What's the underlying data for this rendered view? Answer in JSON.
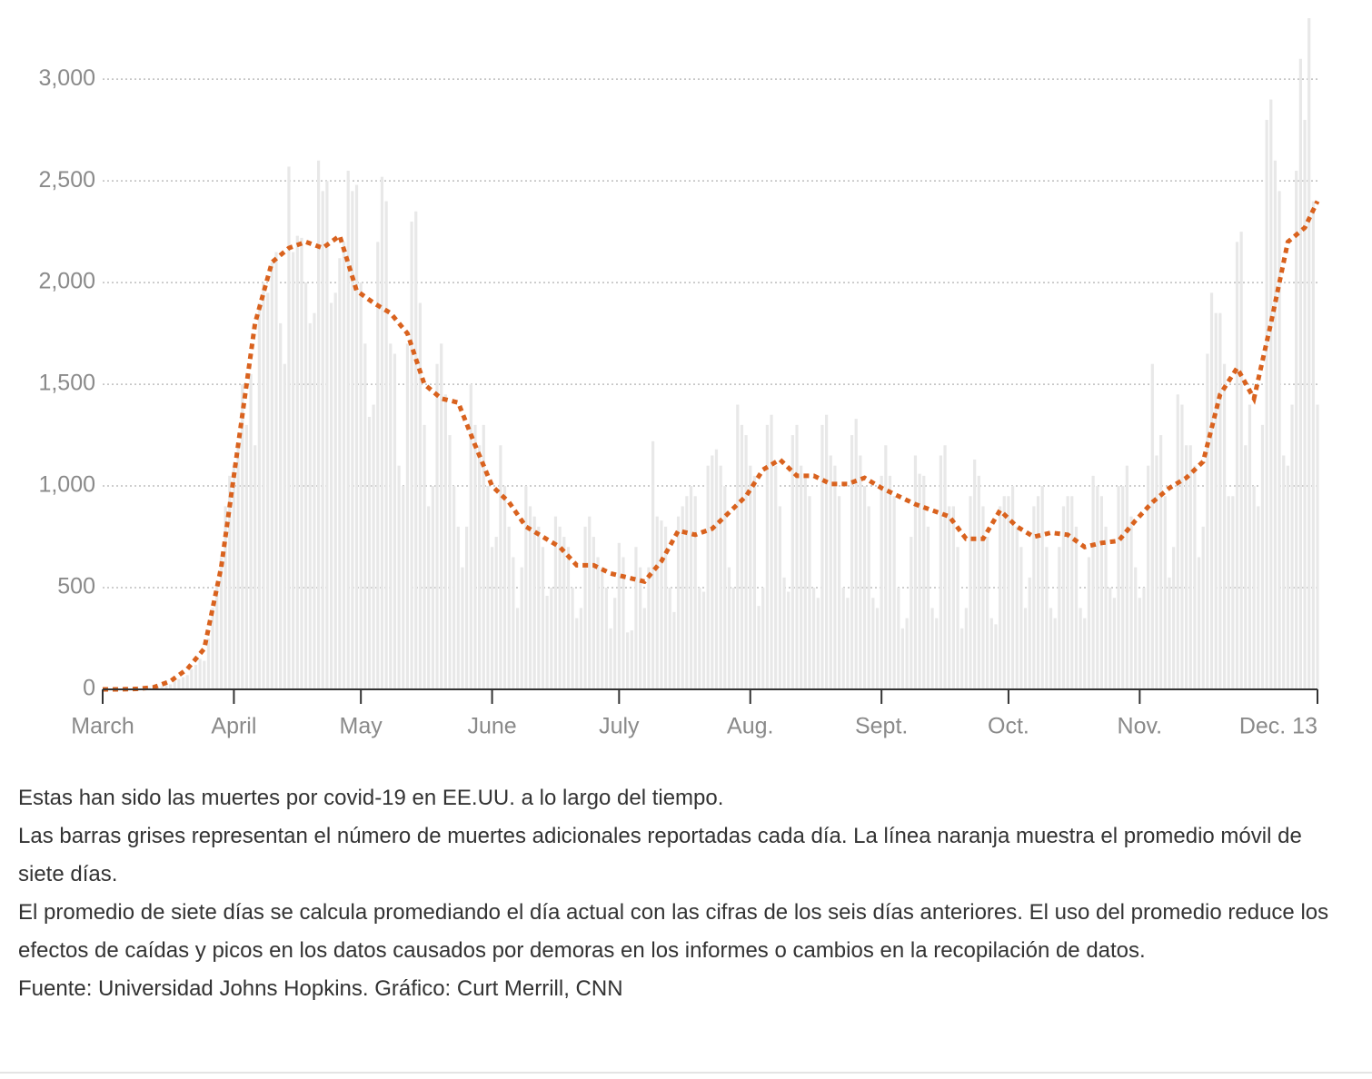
{
  "chart_data": {
    "type": "bar",
    "xlim": [
      0,
      287
    ],
    "ylim": [
      0,
      3300
    ],
    "xticks": [
      {
        "value": 0,
        "label": "March"
      },
      {
        "value": 31,
        "label": "April"
      },
      {
        "value": 61,
        "label": "May"
      },
      {
        "value": 92,
        "label": "June"
      },
      {
        "value": 122,
        "label": "July"
      },
      {
        "value": 153,
        "label": "Aug."
      },
      {
        "value": 184,
        "label": "Sept."
      },
      {
        "value": 214,
        "label": "Oct."
      },
      {
        "value": 245,
        "label": "Nov."
      },
      {
        "value": 287,
        "label": "Dec. 13"
      }
    ],
    "yticks": [
      0,
      500,
      {
        "value": 1000,
        "label": "1,000"
      },
      {
        "value": 1500,
        "label": "1,500"
      },
      {
        "value": 2000,
        "label": "2,000"
      },
      {
        "value": 2500,
        "label": "2,500"
      },
      {
        "value": 3000,
        "label": "3,000"
      }
    ],
    "grid": true,
    "series": [
      {
        "type": "bar",
        "color": "#e8e8e8",
        "x": [
          0,
          1,
          2,
          3,
          4,
          5,
          6,
          7,
          8,
          9,
          10,
          11,
          12,
          13,
          14,
          15,
          16,
          17,
          18,
          19,
          20,
          21,
          22,
          23,
          24,
          25,
          26,
          27,
          28,
          29,
          30,
          31,
          32,
          33,
          34,
          35,
          36,
          37,
          38,
          39,
          40,
          41,
          42,
          43,
          44,
          45,
          46,
          47,
          48,
          49,
          50,
          51,
          52,
          53,
          54,
          55,
          56,
          57,
          58,
          59,
          60,
          61,
          62,
          63,
          64,
          65,
          66,
          67,
          68,
          69,
          70,
          71,
          72,
          73,
          74,
          75,
          76,
          77,
          78,
          79,
          80,
          81,
          82,
          83,
          84,
          85,
          86,
          87,
          88,
          89,
          90,
          91,
          92,
          93,
          94,
          95,
          96,
          97,
          98,
          99,
          100,
          101,
          102,
          103,
          104,
          105,
          106,
          107,
          108,
          109,
          110,
          111,
          112,
          113,
          114,
          115,
          116,
          117,
          118,
          119,
          120,
          121,
          122,
          123,
          124,
          125,
          126,
          127,
          128,
          129,
          130,
          131,
          132,
          133,
          134,
          135,
          136,
          137,
          138,
          139,
          140,
          141,
          142,
          143,
          144,
          145,
          146,
          147,
          148,
          149,
          150,
          151,
          152,
          153,
          154,
          155,
          156,
          157,
          158,
          159,
          160,
          161,
          162,
          163,
          164,
          165,
          166,
          167,
          168,
          169,
          170,
          171,
          172,
          173,
          174,
          175,
          176,
          177,
          178,
          179,
          180,
          181,
          182,
          183,
          184,
          185,
          186,
          187,
          188,
          189,
          190,
          191,
          192,
          193,
          194,
          195,
          196,
          197,
          198,
          199,
          200,
          201,
          202,
          203,
          204,
          205,
          206,
          207,
          208,
          209,
          210,
          211,
          212,
          213,
          214,
          215,
          216,
          217,
          218,
          219,
          220,
          221,
          222,
          223,
          224,
          225,
          226,
          227,
          228,
          229,
          230,
          231,
          232,
          233,
          234,
          235,
          236,
          237,
          238,
          239,
          240,
          241,
          242,
          243,
          244,
          245,
          246,
          247,
          248,
          249,
          250,
          251,
          252,
          253,
          254,
          255,
          256,
          257,
          258,
          259,
          260,
          261,
          262,
          263,
          264,
          265,
          266,
          267,
          268,
          269,
          270,
          271,
          272,
          273,
          274,
          275,
          276,
          277,
          278,
          279,
          280,
          281,
          282,
          283,
          284,
          285,
          286,
          287
        ],
        "values": [
          0,
          0,
          1,
          2,
          1,
          2,
          2,
          3,
          4,
          5,
          8,
          10,
          10,
          12,
          15,
          20,
          25,
          40,
          50,
          60,
          70,
          100,
          120,
          150,
          140,
          250,
          400,
          520,
          650,
          900,
          1050,
          1100,
          1200,
          1500,
          1300,
          1550,
          1200,
          1900,
          2000,
          1950,
          2100,
          2150,
          1800,
          1600,
          2570,
          2150,
          2230,
          2220,
          2000,
          1800,
          1850,
          2600,
          2450,
          2500,
          1900,
          1950,
          2120,
          2200,
          2550,
          2450,
          2480,
          2000,
          1700,
          1340,
          1400,
          2200,
          2520,
          2400,
          1700,
          1650,
          1100,
          1000,
          1700,
          2300,
          2350,
          1900,
          1300,
          900,
          1000,
          1600,
          1700,
          1450,
          1250,
          1000,
          800,
          600,
          800,
          1500,
          1300,
          1200,
          1300,
          1000,
          700,
          750,
          1200,
          1000,
          800,
          650,
          400,
          600,
          1000,
          900,
          850,
          800,
          700,
          460,
          500,
          850,
          800,
          750,
          700,
          500,
          350,
          400,
          800,
          850,
          750,
          650,
          600,
          500,
          300,
          450,
          720,
          650,
          280,
          290,
          700,
          600,
          400,
          600,
          1220,
          850,
          830,
          800,
          500,
          380,
          850,
          900,
          950,
          1000,
          950,
          500,
          480,
          1100,
          1150,
          1180,
          1100,
          1000,
          600,
          500,
          1400,
          1300,
          1250,
          1100,
          1050,
          410,
          500,
          1300,
          1350,
          1100,
          900,
          550,
          480,
          1250,
          1300,
          1100,
          1050,
          950,
          500,
          450,
          1300,
          1350,
          1150,
          1100,
          950,
          500,
          450,
          1250,
          1330,
          1150,
          1000,
          900,
          450,
          400,
          1050,
          1200,
          1050,
          950,
          500,
          300,
          350,
          750,
          1150,
          1060,
          1050,
          800,
          400,
          350,
          1150,
          1200,
          900,
          900,
          700,
          300,
          400,
          950,
          1130,
          1050,
          900,
          750,
          350,
          320,
          900,
          950,
          950,
          1000,
          800,
          700,
          400,
          550,
          900,
          950,
          1000,
          700,
          400,
          350,
          700,
          900,
          950,
          950,
          800,
          400,
          350,
          650,
          1050,
          1000,
          950,
          800,
          500,
          450,
          1000,
          1000,
          1100,
          850,
          600,
          450,
          500,
          1100,
          1600,
          1150,
          1250,
          950,
          550,
          700,
          1450,
          1400,
          1200,
          1200,
          1100,
          650,
          800,
          1650,
          1950,
          1850,
          1850,
          1600,
          950,
          950,
          2200,
          2250,
          1200,
          1400,
          1000,
          900,
          1300,
          2800,
          2900,
          2600,
          2450,
          1150,
          1100,
          1400,
          2550,
          3100,
          2800,
          3300,
          2400,
          1400
        ]
      },
      {
        "type": "line",
        "color": "#d9621e",
        "x": [
          0,
          4,
          8,
          12,
          16,
          20,
          24,
          28,
          32,
          36,
          40,
          44,
          48,
          52,
          56,
          60,
          64,
          68,
          72,
          76,
          80,
          84,
          88,
          92,
          96,
          100,
          104,
          108,
          112,
          116,
          120,
          124,
          128,
          132,
          136,
          140,
          144,
          148,
          152,
          156,
          160,
          164,
          168,
          172,
          176,
          180,
          184,
          188,
          192,
          196,
          200,
          204,
          208,
          212,
          216,
          220,
          224,
          228,
          232,
          236,
          240,
          244,
          248,
          252,
          256,
          260,
          264,
          268,
          272,
          276,
          280,
          284,
          287
        ],
        "values": [
          0,
          0,
          2,
          10,
          40,
          100,
          200,
          600,
          1200,
          1800,
          2100,
          2170,
          2200,
          2170,
          2230,
          1960,
          1900,
          1850,
          1750,
          1500,
          1430,
          1410,
          1200,
          1000,
          920,
          800,
          750,
          700,
          610,
          610,
          570,
          550,
          530,
          630,
          780,
          760,
          790,
          870,
          950,
          1080,
          1130,
          1050,
          1050,
          1010,
          1010,
          1040,
          990,
          950,
          910,
          880,
          850,
          740,
          740,
          880,
          800,
          750,
          770,
          760,
          700,
          720,
          730,
          830,
          920,
          990,
          1040,
          1120,
          1450,
          1580,
          1430,
          1800,
          2200,
          2270,
          2400
        ]
      }
    ]
  },
  "notes": [
    "Estas han sido las muertes por covid-19 en EE.UU. a lo largo del tiempo.",
    "Las barras grises representan el número de muertes adicionales reportadas cada día. La línea naranja muestra el promedio móvil de siete días.",
    "El promedio de siete días se calcula promediando el día actual con las cifras de los seis días anteriores. El uso del promedio reduce los efectos de caídas y picos en los datos causados por demoras en los informes o cambios en la recopilación de datos.",
    "Fuente: Universidad Johns Hopkins. Gráfico: Curt Merrill, CNN"
  ]
}
